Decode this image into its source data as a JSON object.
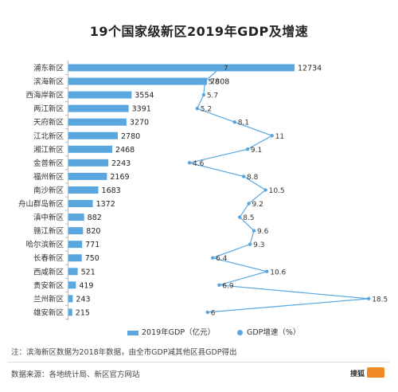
{
  "title": "19个国家级新区2019年GDP及增速",
  "legend": {
    "bar_label": "2019年GDP（亿元）",
    "line_label": "GDP增速（%）"
  },
  "note": "注：滨海新区数据为2018年数据，由全市GDP减其他区县GDP得出",
  "source": "数据来源：各地统计局、新区官方网站",
  "colors": {
    "bar": "#5aa7e0",
    "line": "#5aa7e0"
  },
  "chart_data": {
    "type": "bar",
    "orientation": "horizontal",
    "categories": [
      "浦东新区",
      "滨海新区",
      "西海岸新区",
      "两江新区",
      "天府新区",
      "江北新区",
      "湘江新区",
      "金普新区",
      "福州新区",
      "南沙新区",
      "舟山群岛新区",
      "滇中新区",
      "赣江新区",
      "哈尔滨新区",
      "长春新区",
      "西咸新区",
      "贵安新区",
      "兰州新区",
      "雄安新区"
    ],
    "series": [
      {
        "name": "2019年GDP（亿元）",
        "type": "bar",
        "values": [
          12734,
          7808,
          3554,
          3391,
          3270,
          2780,
          2468,
          2243,
          2169,
          1683,
          1372,
          882,
          820,
          771,
          750,
          521,
          419,
          243,
          215
        ]
      },
      {
        "name": "GDP增速（%）",
        "type": "line",
        "values": [
          7,
          5.8,
          5.7,
          5.2,
          8.1,
          11,
          9.1,
          4.6,
          8.8,
          10.5,
          9.2,
          8.5,
          9.6,
          9.3,
          6.4,
          10.6,
          6.9,
          18.5,
          6
        ]
      }
    ],
    "legend_position": "bottom"
  }
}
